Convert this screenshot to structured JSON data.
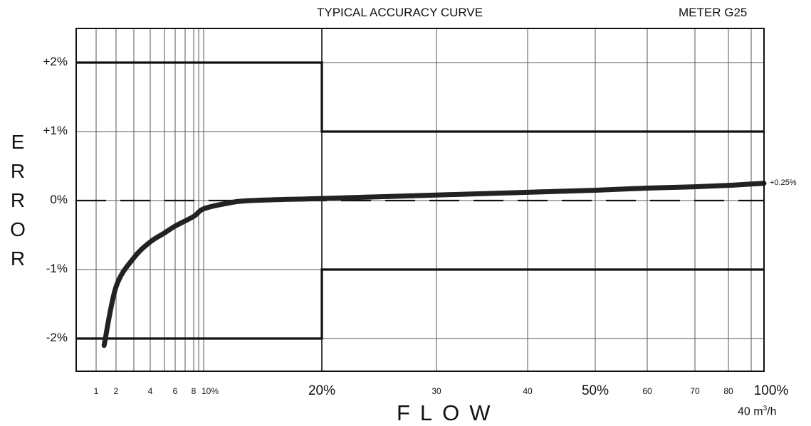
{
  "header": {
    "title": "TYPICAL ACCURACY CURVE",
    "meter": "METER G25"
  },
  "axes": {
    "ylabel_letters": [
      "E",
      "R",
      "R",
      "O",
      "R"
    ],
    "xlabel": "FLOW",
    "unit_prefix": "40 m",
    "unit_sup": "3",
    "unit_suffix": "/h"
  },
  "chart_data": {
    "type": "line",
    "title": "TYPICAL ACCURACY CURVE",
    "subtitle": "METER G25",
    "xlabel": "FLOW",
    "ylabel": "ERROR",
    "xlim": [
      0,
      100
    ],
    "ylim": [
      -2.5,
      2.5
    ],
    "y_ticks": [
      {
        "value": 2,
        "label": "+2%"
      },
      {
        "value": 1,
        "label": "+1%"
      },
      {
        "value": 0,
        "label": "0%"
      },
      {
        "value": -1,
        "label": "-1%"
      },
      {
        "value": -2,
        "label": "-2%"
      }
    ],
    "x_ticks_small": [
      {
        "value": 1,
        "label": "1"
      },
      {
        "value": 2,
        "label": "2"
      },
      {
        "value": 4,
        "label": "4"
      },
      {
        "value": 6,
        "label": "6"
      },
      {
        "value": 8,
        "label": "8"
      },
      {
        "value": 30,
        "label": "30"
      },
      {
        "value": 40,
        "label": "40"
      },
      {
        "value": 60,
        "label": "60"
      },
      {
        "value": 70,
        "label": "70"
      },
      {
        "value": 80,
        "label": "80"
      }
    ],
    "x_ticks_big": [
      {
        "value": 10,
        "label": "10%",
        "small": true
      },
      {
        "value": 20,
        "label": "20%"
      },
      {
        "value": 50,
        "label": "50%"
      },
      {
        "value": 100,
        "label": "100%"
      }
    ],
    "x_gridlines": [
      1,
      2,
      3,
      4,
      5,
      6,
      7,
      8,
      9,
      10,
      20,
      30,
      40,
      50,
      60,
      70,
      80,
      90,
      100
    ],
    "y_gridlines": [
      2,
      1,
      0,
      -1,
      -2
    ],
    "series": [
      {
        "role": "accuracy-curve",
        "x": [
          1.4,
          2,
          3,
          4,
          5,
          6,
          8,
          10,
          12,
          14,
          20,
          30,
          40,
          50,
          60,
          70,
          80,
          90,
          100
        ],
        "y": [
          -2.1,
          -1.25,
          -0.83,
          -0.6,
          -0.47,
          -0.37,
          -0.23,
          -0.12,
          -0.04,
          0.0,
          0.03,
          0.08,
          0.12,
          0.15,
          0.18,
          0.2,
          0.22,
          0.24,
          0.25
        ]
      },
      {
        "role": "upper-limit",
        "x": [
          0,
          20,
          20,
          100
        ],
        "y": [
          2,
          2,
          1,
          1
        ]
      },
      {
        "role": "lower-limit",
        "x": [
          0,
          20,
          20,
          100
        ],
        "y": [
          -2,
          -2,
          -1,
          -1
        ]
      },
      {
        "role": "zero-reference",
        "dashed": true,
        "x": [
          0,
          100
        ],
        "y": [
          0,
          0
        ]
      }
    ],
    "annotations": [
      {
        "x": 100,
        "y": 0.25,
        "text": "+0.25%"
      }
    ],
    "grid": true
  }
}
